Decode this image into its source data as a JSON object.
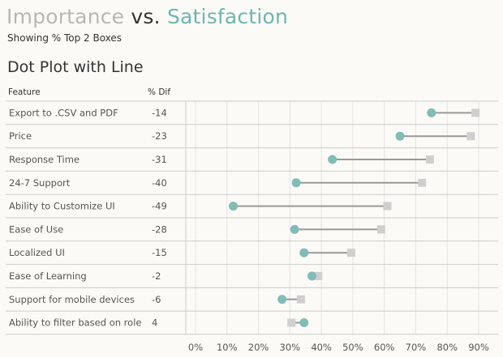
{
  "title": {
    "word1": "Importance",
    "word2": "vs.",
    "word3": "Satisfaction"
  },
  "subtitle": "Showing % Top 2 Boxes",
  "colors": {
    "importance": "#cfcfcf",
    "satisfaction": "#82bcb7",
    "connector": "#999999",
    "gridline": "#e4e4e4",
    "rowline": "#cccccc"
  },
  "chart_data": {
    "type": "dot-plot-with-line",
    "title": "Dot Plot with Line",
    "column_headers": {
      "feature": "Feature",
      "diff": "% Dif"
    },
    "x_ticks": [
      0,
      10,
      20,
      30,
      40,
      50,
      60,
      70,
      80,
      90
    ],
    "x_tick_labels": [
      "0%",
      "10%",
      "20%",
      "30%",
      "40%",
      "50%",
      "60%",
      "70%",
      "80%",
      "90%"
    ],
    "xlim": [
      0,
      95
    ],
    "legend": [
      "Importance (gray square)",
      "Satisfaction (teal circle)"
    ],
    "rows": [
      {
        "feature": "Export to .CSV and PDF",
        "diff": "-14",
        "satisfaction": 75,
        "importance": 89
      },
      {
        "feature": "Price",
        "diff": "-23",
        "satisfaction": 65,
        "importance": 87.5
      },
      {
        "feature": "Response Time",
        "diff": "-31",
        "satisfaction": 43.5,
        "importance": 74.5
      },
      {
        "feature": "24-7 Support",
        "diff": "-40",
        "satisfaction": 32,
        "importance": 72
      },
      {
        "feature": "Ability to Customize UI",
        "diff": "-49",
        "satisfaction": 12,
        "importance": 61
      },
      {
        "feature": "Ease of Use",
        "diff": "-28",
        "satisfaction": 31.5,
        "importance": 59
      },
      {
        "feature": "Localized UI",
        "diff": "-15",
        "satisfaction": 34.5,
        "importance": 49.5
      },
      {
        "feature": "Ease of Learning",
        "diff": "-2",
        "satisfaction": 37,
        "importance": 39
      },
      {
        "feature": "Support for mobile devices",
        "diff": "-6",
        "satisfaction": 27.5,
        "importance": 33.5
      },
      {
        "feature": "Ability to filter based on role",
        "diff": "4",
        "satisfaction": 34.5,
        "importance": 30.5
      }
    ]
  }
}
